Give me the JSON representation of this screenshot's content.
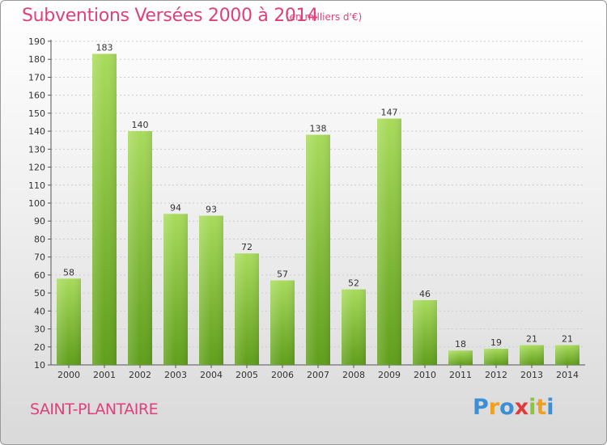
{
  "title": "Subventions Versées 2000 à 2014",
  "subtitle": "(en milliers d'€)",
  "commune": "SAINT-PLANTAIRE",
  "logo": {
    "letters": [
      "P",
      "r",
      "o",
      "x",
      "i",
      "t",
      "i"
    ],
    "colors": [
      "#3a8fd6",
      "#f0a020",
      "#3a8fd6",
      "#e03a3a",
      "#8cc43a",
      "#f0a020",
      "#3a8fd6"
    ]
  },
  "colors": {
    "bar_top": "#a8db5c",
    "bar_bottom": "#5f9e1a",
    "grid": "#cccccc",
    "axis": "#555555",
    "title": "#e0407a"
  },
  "chart_data": {
    "type": "bar",
    "categories": [
      "2000",
      "2001",
      "2002",
      "2003",
      "2004",
      "2005",
      "2006",
      "2007",
      "2008",
      "2009",
      "2010",
      "2011",
      "2012",
      "2013",
      "2014"
    ],
    "values": [
      58,
      183,
      140,
      94,
      93,
      72,
      57,
      138,
      52,
      147,
      46,
      18,
      19,
      21,
      21
    ],
    "ylim": [
      10,
      190
    ],
    "yticks": [
      10,
      20,
      30,
      40,
      50,
      60,
      70,
      80,
      90,
      100,
      110,
      120,
      130,
      140,
      150,
      160,
      170,
      180,
      190
    ],
    "grid": true,
    "xlabel": "",
    "ylabel": ""
  }
}
